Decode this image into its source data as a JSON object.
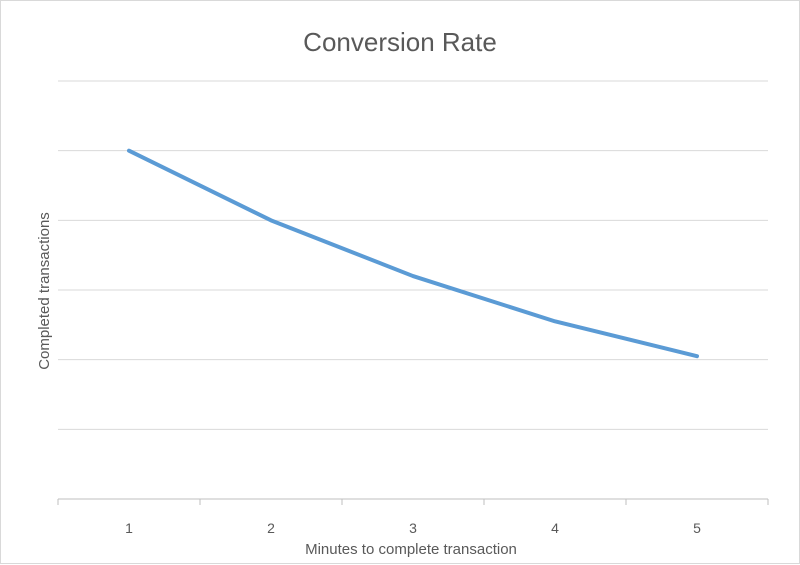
{
  "chart_data": {
    "type": "line",
    "title": "Conversion Rate",
    "xlabel": "Minutes to complete transaction",
    "ylabel": "Completed transactions",
    "categories": [
      "1",
      "2",
      "3",
      "4",
      "5"
    ],
    "series": [
      {
        "values": [
          5,
          4,
          3.2,
          2.55,
          2.05
        ]
      }
    ],
    "ylim": [
      0,
      6
    ],
    "y_tick_step": 1,
    "y_tick_labels_shown": false,
    "grid": true,
    "legend": "none",
    "colors": {
      "series": "#5b9bd5",
      "grid": "#d9d9d9",
      "axis": "#bfbfbf",
      "text": "#595959"
    }
  }
}
